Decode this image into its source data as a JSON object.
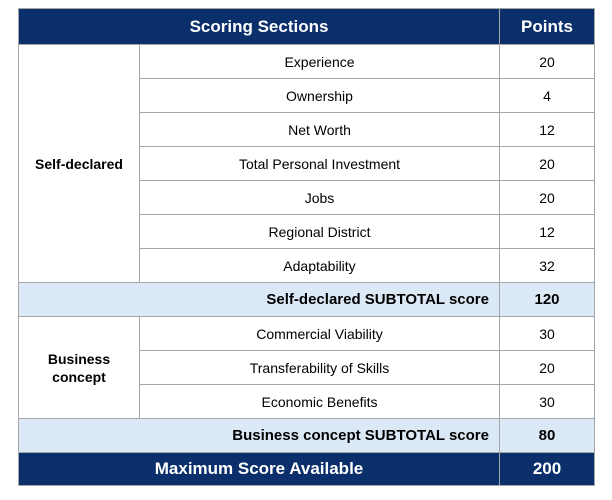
{
  "header": {
    "sections_label": "Scoring Sections",
    "points_label": "Points"
  },
  "groups": [
    {
      "label_line1": "Self-declared",
      "label_line2": "",
      "items": [
        {
          "name": "Experience",
          "points": "20"
        },
        {
          "name": "Ownership",
          "points": "4"
        },
        {
          "name": "Net Worth",
          "points": "12"
        },
        {
          "name": "Total Personal Investment",
          "points": "20"
        },
        {
          "name": "Jobs",
          "points": "20"
        },
        {
          "name": "Regional District",
          "points": "12"
        },
        {
          "name": "Adaptability",
          "points": "32"
        }
      ],
      "subtotal_label": "Self-declared SUBTOTAL score",
      "subtotal_points": "120"
    },
    {
      "label_line1": "Business",
      "label_line2": "concept",
      "items": [
        {
          "name": "Commercial Viability",
          "points": "30"
        },
        {
          "name": "Transferability of Skills",
          "points": "20"
        },
        {
          "name": "Economic Benefits",
          "points": "30"
        }
      ],
      "subtotal_label": "Business concept SUBTOTAL score",
      "subtotal_points": "80"
    }
  ],
  "footer": {
    "max_label": "Maximum Score Available",
    "max_points": "200"
  },
  "colors": {
    "header_bg": "#0b2f6b",
    "subtotal_bg": "#dbe8f6",
    "border": "#a6a6a6"
  }
}
